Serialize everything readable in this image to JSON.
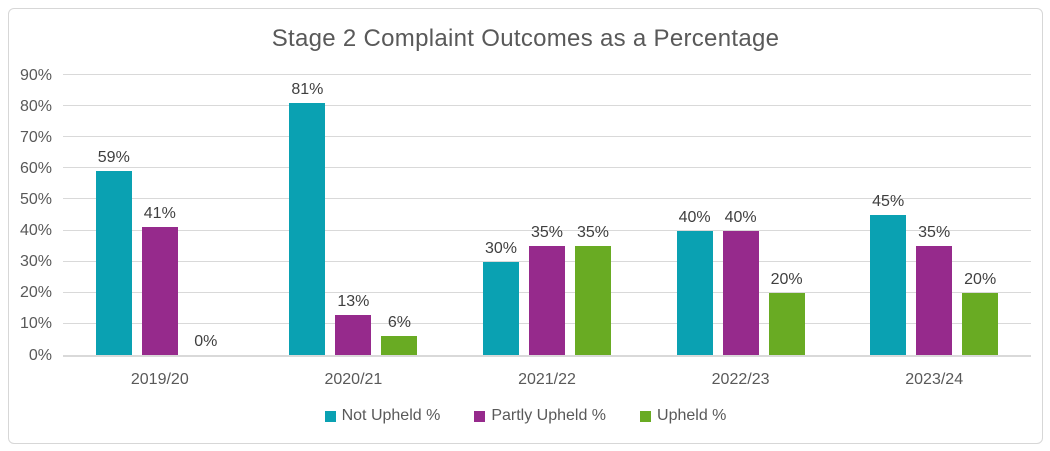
{
  "chart_data": {
    "type": "bar",
    "title": "Stage 2 Complaint Outcomes as a Percentage",
    "categories": [
      "2019/20",
      "2020/21",
      "2021/22",
      "2022/23",
      "2023/24"
    ],
    "series": [
      {
        "name": "Not Upheld %",
        "color": "#0aa1b2",
        "values": [
          59,
          81,
          30,
          40,
          45
        ]
      },
      {
        "name": "Partly Upheld %",
        "color": "#962a8c",
        "values": [
          41,
          13,
          35,
          40,
          35
        ]
      },
      {
        "name": "Upheld %",
        "color": "#69ab23",
        "values": [
          0,
          6,
          35,
          20,
          20
        ]
      }
    ],
    "ylim": [
      0,
      90
    ],
    "ytick_step": 10,
    "ytick_suffix": "%",
    "data_label_suffix": "%",
    "grid": true,
    "legend_position": "bottom",
    "colors": {
      "title_text": "#595959",
      "tick_text": "#595959",
      "data_label_text": "#3f3f3f",
      "gridline": "#d9d9d9",
      "card_border": "#d7d7d7"
    }
  }
}
